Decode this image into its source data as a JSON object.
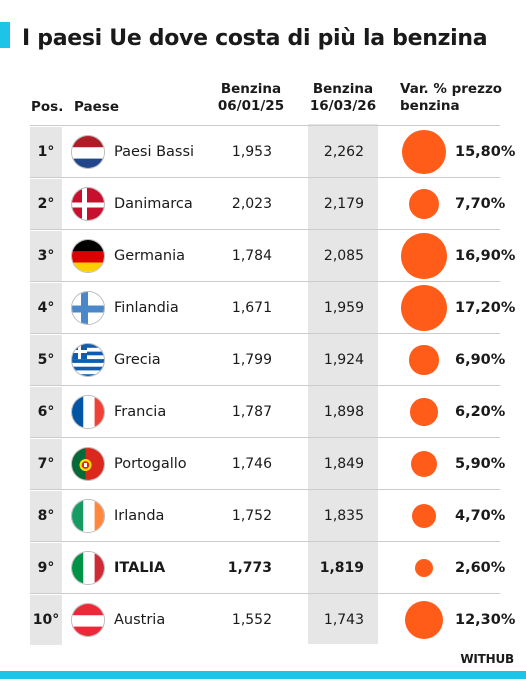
{
  "title": "I paesi Ue dove costa di più la benzina",
  "headers": {
    "pos": "Pos.",
    "paese": "Paese",
    "col1_line1": "Benzina",
    "col1_line2": "06/01/25",
    "col2_line1": "Benzina",
    "col2_line2": "16/03/26",
    "col3_line1": "Var. % prezzo",
    "col3_line2": "benzina"
  },
  "brand": "WITHUB",
  "colors": {
    "accent": "#1cc4e8",
    "bubble": "#ff5c1a",
    "shade": "#e6e6e6"
  },
  "chart_data": {
    "type": "table",
    "title": "I paesi Ue dove costa di più la benzina",
    "columns": [
      "Pos.",
      "Paese",
      "Benzina 06/01/25",
      "Benzina 16/03/26",
      "Var. % prezzo benzina"
    ],
    "rows": [
      {
        "pos": "1°",
        "country": "Paesi Bassi",
        "flag": "netherlands-flag-icon",
        "price_2025": "1,953",
        "price_2026": "2,262",
        "pct_label": "15,80%",
        "pct": 15.8
      },
      {
        "pos": "2°",
        "country": "Danimarca",
        "flag": "denmark-flag-icon",
        "price_2025": "2,023",
        "price_2026": "2,179",
        "pct_label": "7,70%",
        "pct": 7.7
      },
      {
        "pos": "3°",
        "country": "Germania",
        "flag": "germany-flag-icon",
        "price_2025": "1,784",
        "price_2026": "2,085",
        "pct_label": "16,90%",
        "pct": 16.9
      },
      {
        "pos": "4°",
        "country": "Finlandia",
        "flag": "finland-flag-icon",
        "price_2025": "1,671",
        "price_2026": "1,959",
        "pct_label": "17,20%",
        "pct": 17.2
      },
      {
        "pos": "5°",
        "country": "Grecia",
        "flag": "greece-flag-icon",
        "price_2025": "1,799",
        "price_2026": "1,924",
        "pct_label": "6,90%",
        "pct": 6.9
      },
      {
        "pos": "6°",
        "country": "Francia",
        "flag": "france-flag-icon",
        "price_2025": "1,787",
        "price_2026": "1,898",
        "pct_label": "6,20%",
        "pct": 6.2
      },
      {
        "pos": "7°",
        "country": "Portogallo",
        "flag": "portugal-flag-icon",
        "price_2025": "1,746",
        "price_2026": "1,849",
        "pct_label": "5,90%",
        "pct": 5.9
      },
      {
        "pos": "8°",
        "country": "Irlanda",
        "flag": "ireland-flag-icon",
        "price_2025": "1,752",
        "price_2026": "1,835",
        "pct_label": "4,70%",
        "pct": 4.7
      },
      {
        "pos": "9°",
        "country": "ITALIA",
        "flag": "italy-flag-icon",
        "price_2025": "1,773",
        "price_2026": "1,819",
        "pct_label": "2,60%",
        "pct": 2.6,
        "highlight": true
      },
      {
        "pos": "10°",
        "country": "Austria",
        "flag": "austria-flag-icon",
        "price_2025": "1,552",
        "price_2026": "1,743",
        "pct_label": "12,30%",
        "pct": 12.3
      }
    ]
  }
}
